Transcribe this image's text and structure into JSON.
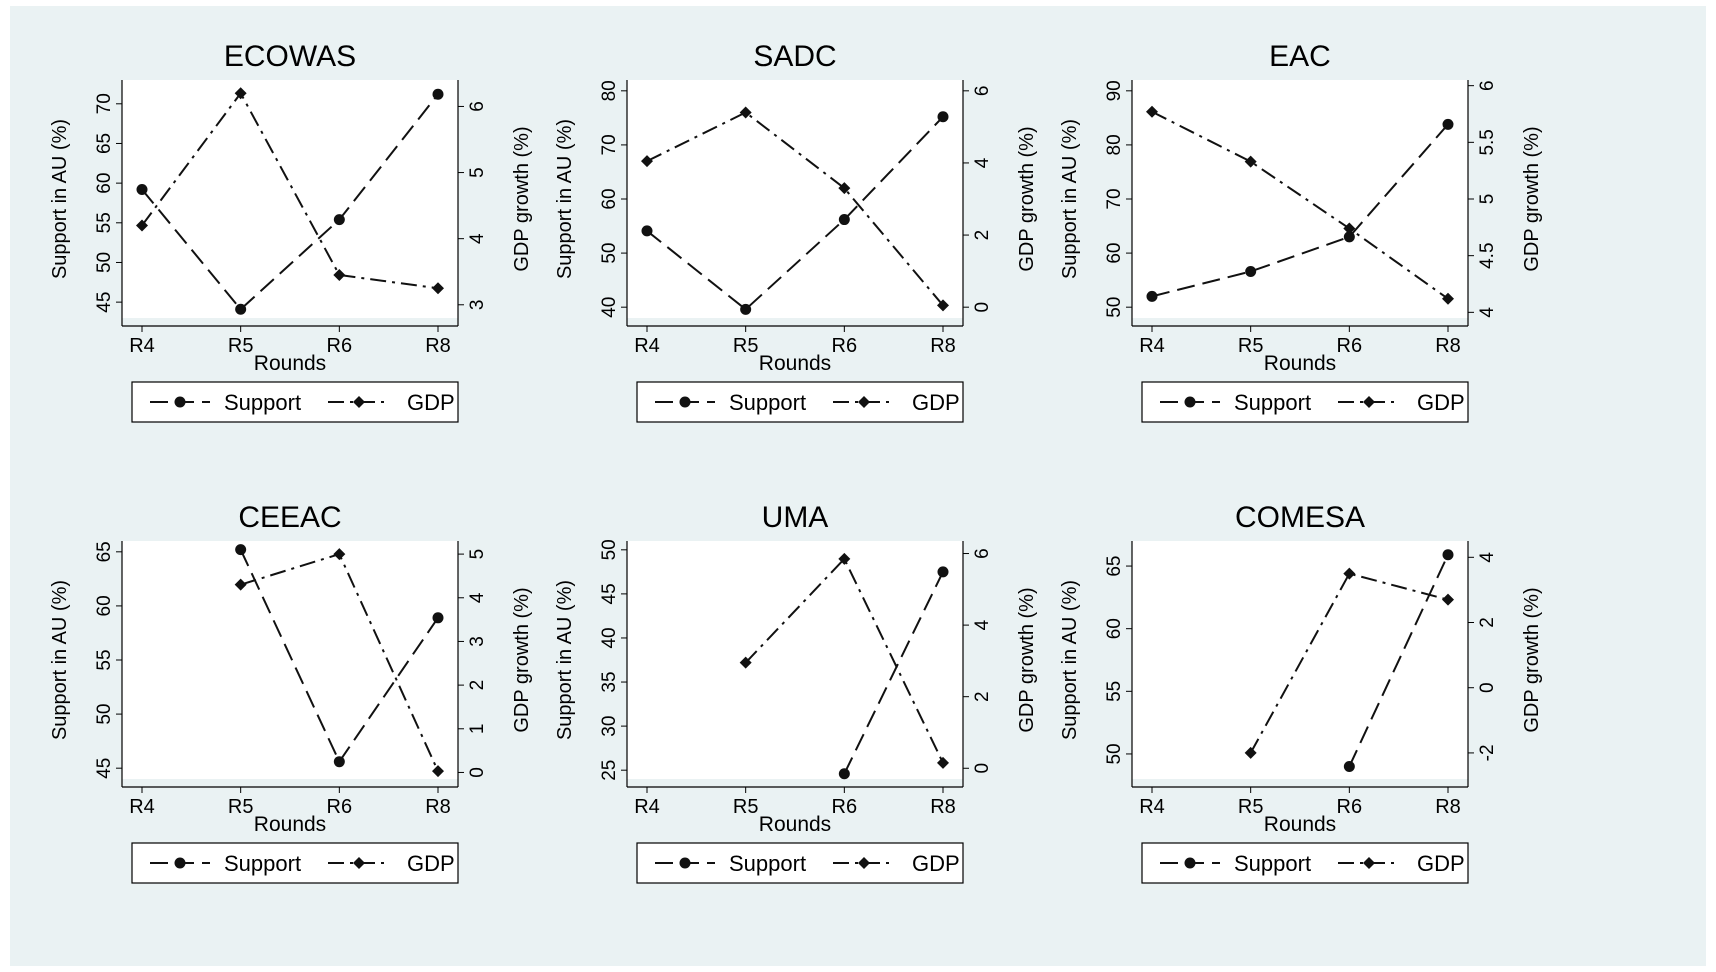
{
  "chart_data": [
    {
      "type": "line",
      "title": "ECOWAS",
      "categories": [
        "R4",
        "R5",
        "R6",
        "R8"
      ],
      "xlabel": "Rounds",
      "ylabel": "Support in AU (%)",
      "y2label": "GDP growth (%)",
      "ylim": [
        43,
        73
      ],
      "yticks": [
        "45",
        "50",
        "55",
        "60",
        "65",
        "70"
      ],
      "y2lim": [
        2.8,
        6.4
      ],
      "y2ticks": [
        "3",
        "4",
        "5",
        "6"
      ],
      "series": [
        {
          "name": "Support",
          "axis": "left",
          "marker": "circle",
          "dash": "long-dash",
          "values": [
            59.2,
            44.1,
            55.4,
            71.2
          ]
        },
        {
          "name": "GDP",
          "axis": "right",
          "marker": "diamond",
          "dash": "dash-dot",
          "values": [
            4.2,
            6.2,
            3.45,
            3.25
          ]
        }
      ],
      "legend": {
        "position": "bottom",
        "items": [
          "Support",
          "GDP"
        ]
      }
    },
    {
      "type": "line",
      "title": "SADC",
      "categories": [
        "R4",
        "R5",
        "R6",
        "R8"
      ],
      "xlabel": "Rounds",
      "ylabel": "Support in AU (%)",
      "y2label": "GDP growth (%)",
      "ylim": [
        38,
        82
      ],
      "yticks": [
        "40",
        "50",
        "60",
        "70",
        "80"
      ],
      "y2lim": [
        -0.3,
        6.3
      ],
      "y2ticks": [
        "0",
        "2",
        "4",
        "6"
      ],
      "series": [
        {
          "name": "Support",
          "axis": "left",
          "marker": "circle",
          "dash": "long-dash",
          "values": [
            54.1,
            39.6,
            56.2,
            75.2
          ]
        },
        {
          "name": "GDP",
          "axis": "right",
          "marker": "diamond",
          "dash": "dash-dot",
          "values": [
            4.05,
            5.4,
            3.3,
            0.05
          ]
        }
      ],
      "legend": {
        "position": "bottom",
        "items": [
          "Support",
          "GDP"
        ]
      }
    },
    {
      "type": "line",
      "title": "EAC",
      "categories": [
        "R4",
        "R5",
        "R6",
        "R8"
      ],
      "xlabel": "Rounds",
      "ylabel": "Support in AU (%)",
      "y2label": "GDP growth (%)",
      "ylim": [
        48,
        92
      ],
      "yticks": [
        "50",
        "60",
        "70",
        "80",
        "90"
      ],
      "y2lim": [
        3.95,
        6.05
      ],
      "y2ticks": [
        "4",
        "4.5",
        "5",
        "5.5",
        "6"
      ],
      "series": [
        {
          "name": "Support",
          "axis": "left",
          "marker": "circle",
          "dash": "long-dash",
          "values": [
            52.0,
            56.6,
            63.0,
            83.8
          ]
        },
        {
          "name": "GDP",
          "axis": "right",
          "marker": "diamond",
          "dash": "dash-dot",
          "values": [
            5.77,
            5.33,
            4.74,
            4.12
          ]
        }
      ],
      "legend": {
        "position": "bottom",
        "items": [
          "Support",
          "GDP"
        ]
      }
    },
    {
      "type": "line",
      "title": "CEEAC",
      "categories": [
        "R4",
        "R5",
        "R6",
        "R8"
      ],
      "xlabel": "Rounds",
      "ylabel": "Support in AU (%)",
      "y2label": "GDP growth (%)",
      "ylim": [
        44,
        66
      ],
      "yticks": [
        "45",
        "50",
        "55",
        "60",
        "65"
      ],
      "y2lim": [
        -0.15,
        5.3
      ],
      "y2ticks": [
        "0",
        "1",
        "2",
        "3",
        "4",
        "5"
      ],
      "series": [
        {
          "name": "Support",
          "axis": "left",
          "marker": "circle",
          "dash": "long-dash",
          "values": [
            null,
            65.2,
            45.6,
            58.9
          ]
        },
        {
          "name": "GDP",
          "axis": "right",
          "marker": "diamond",
          "dash": "dash-dot",
          "values": [
            null,
            4.3,
            5.0,
            0.03
          ]
        }
      ],
      "legend": {
        "position": "bottom",
        "items": [
          "Support",
          "GDP"
        ]
      }
    },
    {
      "type": "line",
      "title": "UMA",
      "categories": [
        "R4",
        "R5",
        "R6",
        "R8"
      ],
      "xlabel": "Rounds",
      "ylabel": "Support in AU (%)",
      "y2label": "GDP growth (%)",
      "ylim": [
        24,
        51
      ],
      "yticks": [
        "25",
        "30",
        "35",
        "40",
        "45",
        "50"
      ],
      "y2lim": [
        -0.3,
        6.35
      ],
      "y2ticks": [
        "0",
        "2",
        "4",
        "6"
      ],
      "series": [
        {
          "name": "Support",
          "axis": "left",
          "marker": "circle",
          "dash": "long-dash",
          "values": [
            null,
            null,
            24.6,
            47.5
          ]
        },
        {
          "name": "GDP",
          "axis": "right",
          "marker": "diamond",
          "dash": "dash-dot",
          "values": [
            null,
            2.95,
            5.85,
            0.15
          ]
        }
      ],
      "legend": {
        "position": "bottom",
        "items": [
          "Support",
          "GDP"
        ]
      }
    },
    {
      "type": "line",
      "title": "COMESA",
      "categories": [
        "R4",
        "R5",
        "R6",
        "R8"
      ],
      "xlabel": "Rounds",
      "ylabel": "Support in AU (%)",
      "y2label": "GDP growth (%)",
      "ylim": [
        48,
        67
      ],
      "yticks": [
        "50",
        "55",
        "60",
        "65"
      ],
      "y2lim": [
        -2.8,
        4.5
      ],
      "y2ticks": [
        "-2",
        "0",
        "2",
        "4"
      ],
      "series": [
        {
          "name": "Support",
          "axis": "left",
          "marker": "circle",
          "dash": "long-dash",
          "values": [
            null,
            null,
            49.0,
            65.9
          ]
        },
        {
          "name": "GDP",
          "axis": "right",
          "marker": "diamond",
          "dash": "dash-dot",
          "values": [
            null,
            -2.0,
            3.5,
            2.7
          ]
        }
      ],
      "legend": {
        "position": "bottom",
        "items": [
          "Support",
          "GDP"
        ]
      }
    }
  ]
}
